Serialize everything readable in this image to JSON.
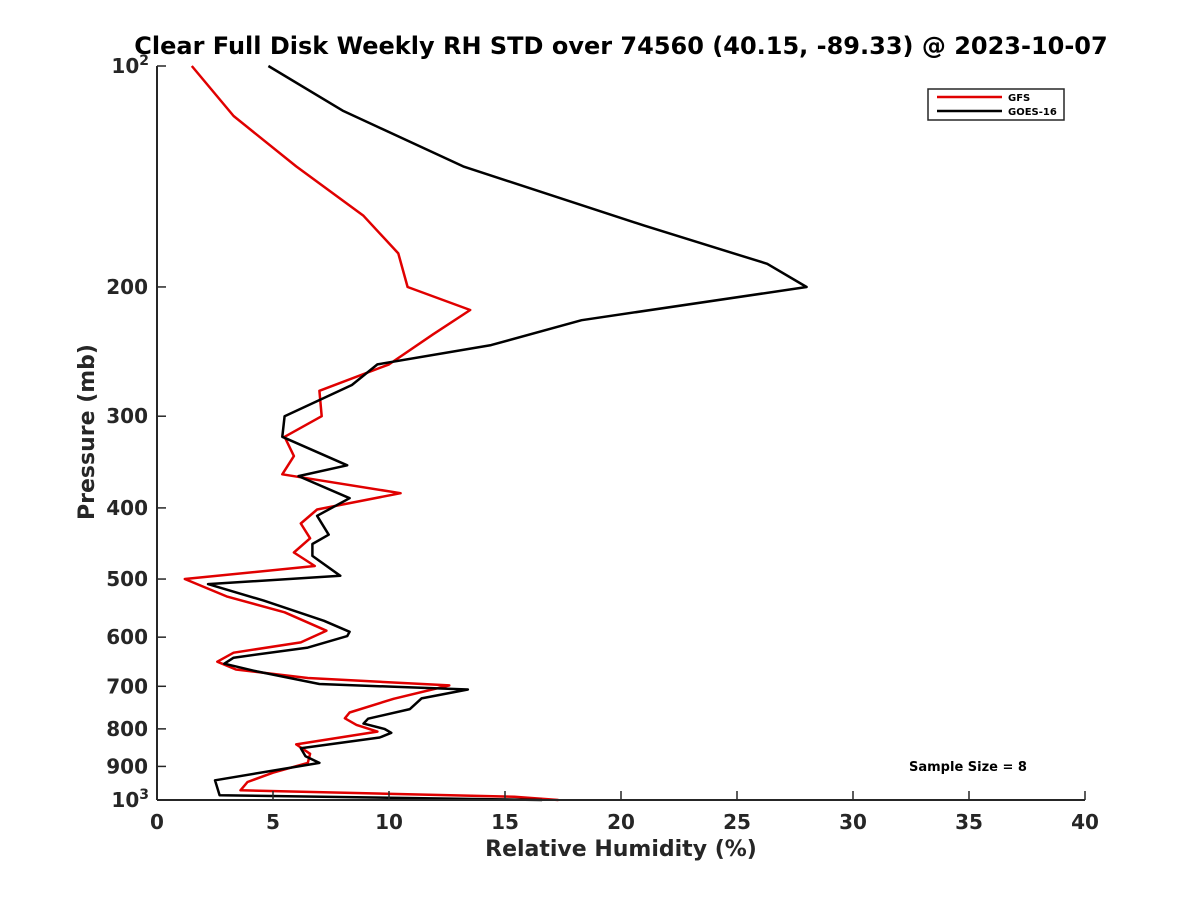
{
  "chart_data": {
    "type": "line",
    "title": "Clear Full Disk Weekly RH STD over 74560 (40.15, -89.33) @ 2023-10-07",
    "xlabel": "Relative Humidity (%)",
    "ylabel": "Pressure (mb)",
    "xlim": [
      0,
      40
    ],
    "ylim": [
      100,
      1000
    ],
    "yscale": "log",
    "yreversed": true,
    "grid": false,
    "x_ticks": [
      0,
      5,
      10,
      15,
      20,
      25,
      30,
      35,
      40
    ],
    "x_tick_labels": [
      "0",
      "5",
      "10",
      "15",
      "20",
      "25",
      "30",
      "35",
      "40"
    ],
    "y_ticks": [
      200,
      300,
      400,
      500,
      600,
      700,
      800,
      900
    ],
    "y_tick_labels": [
      "200",
      "300",
      "400",
      "500",
      "600",
      "700",
      "800",
      "900"
    ],
    "y_end_ticks": [
      {
        "value": 100,
        "base": "10",
        "exp": "2"
      },
      {
        "value": 1000,
        "base": "10",
        "exp": "3"
      }
    ],
    "legend_position": "top-right",
    "annotation": "Sample Size = 8",
    "series": [
      {
        "name": "GFS",
        "color": "#e00000",
        "points": [
          [
            1.5,
            100
          ],
          [
            3.3,
            117
          ],
          [
            6.0,
            137
          ],
          [
            8.9,
            160
          ],
          [
            10.4,
            180
          ],
          [
            10.8,
            200
          ],
          [
            13.5,
            215
          ],
          [
            11.9,
            232
          ],
          [
            10.0,
            255
          ],
          [
            7.0,
            277
          ],
          [
            7.1,
            300
          ],
          [
            5.5,
            320
          ],
          [
            5.9,
            340
          ],
          [
            5.4,
            360
          ],
          [
            10.5,
            382
          ],
          [
            6.9,
            402
          ],
          [
            6.2,
            420
          ],
          [
            6.6,
            440
          ],
          [
            5.9,
            460
          ],
          [
            6.8,
            480
          ],
          [
            1.2,
            500
          ],
          [
            3.0,
            528
          ],
          [
            5.5,
            555
          ],
          [
            7.3,
            588
          ],
          [
            6.2,
            610
          ],
          [
            3.3,
            630
          ],
          [
            2.6,
            648
          ],
          [
            3.4,
            664
          ],
          [
            6.5,
            682
          ],
          [
            12.6,
            698
          ],
          [
            10.2,
            728
          ],
          [
            8.3,
            760
          ],
          [
            8.1,
            774
          ],
          [
            8.6,
            790
          ],
          [
            9.5,
            807
          ],
          [
            6.0,
            840
          ],
          [
            6.6,
            865
          ],
          [
            6.5,
            890
          ],
          [
            5.0,
            918
          ],
          [
            3.9,
            945
          ],
          [
            3.6,
            970
          ],
          [
            15.4,
            990
          ],
          [
            17.3,
            1000
          ]
        ]
      },
      {
        "name": "GOES-16",
        "color": "#000000",
        "points": [
          [
            4.8,
            100
          ],
          [
            8.0,
            115
          ],
          [
            13.2,
            137
          ],
          [
            21.0,
            165
          ],
          [
            26.3,
            186
          ],
          [
            28.0,
            200
          ],
          [
            18.3,
            222
          ],
          [
            14.4,
            240
          ],
          [
            9.5,
            255
          ],
          [
            8.4,
            272
          ],
          [
            5.5,
            300
          ],
          [
            5.4,
            320
          ],
          [
            8.2,
            350
          ],
          [
            6.1,
            362
          ],
          [
            8.3,
            388
          ],
          [
            6.9,
            410
          ],
          [
            7.4,
            435
          ],
          [
            6.7,
            448
          ],
          [
            6.7,
            465
          ],
          [
            7.9,
            495
          ],
          [
            2.2,
            508
          ],
          [
            4.6,
            535
          ],
          [
            7.2,
            570
          ],
          [
            8.3,
            590
          ],
          [
            8.2,
            598
          ],
          [
            6.5,
            620
          ],
          [
            3.3,
            640
          ],
          [
            2.9,
            652
          ],
          [
            4.3,
            668
          ],
          [
            7.0,
            695
          ],
          [
            13.4,
            707
          ],
          [
            11.4,
            727
          ],
          [
            10.9,
            752
          ],
          [
            9.1,
            775
          ],
          [
            8.9,
            787
          ],
          [
            9.8,
            800
          ],
          [
            10.1,
            810
          ],
          [
            9.6,
            822
          ],
          [
            6.2,
            850
          ],
          [
            6.4,
            872
          ],
          [
            7.0,
            890
          ],
          [
            4.9,
            913
          ],
          [
            2.5,
            940
          ],
          [
            2.7,
            985
          ],
          [
            16.6,
            1000
          ]
        ]
      }
    ]
  }
}
